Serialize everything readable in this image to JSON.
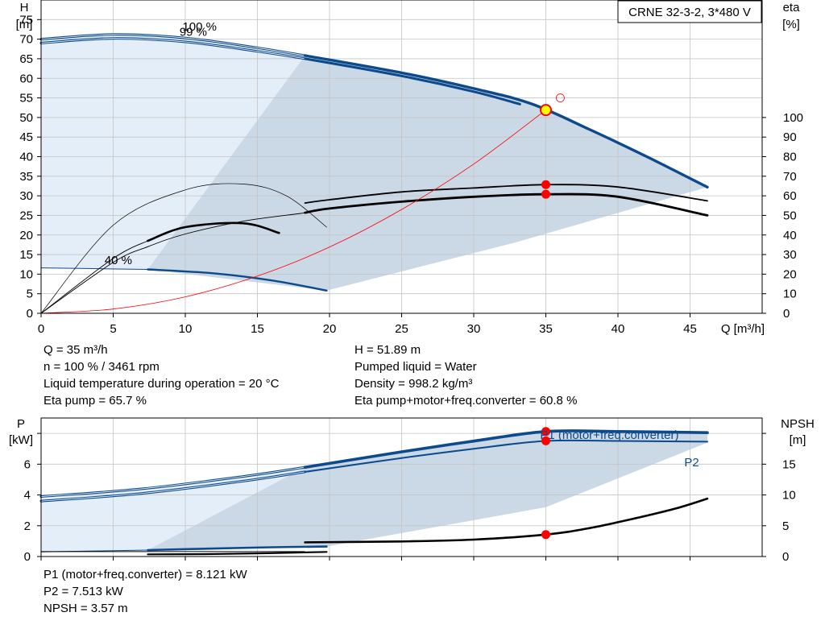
{
  "chart_data": [
    {
      "type": "line",
      "title": "CRNE 32-3-2, 3*480 V",
      "xlabel": "Q [m³/h]",
      "ylabel_left": [
        "H",
        "[m]"
      ],
      "ylabel_right": [
        "eta",
        "[%]"
      ],
      "xlim": [
        0,
        50
      ],
      "ylim": [
        0,
        80
      ],
      "eta_lim": [
        0,
        160
      ],
      "grid": true,
      "x_ticks": [
        "0",
        "5",
        "10",
        "15",
        "20",
        "25",
        "30",
        "35",
        "40",
        "45"
      ],
      "y_ticks": [
        "0",
        "5",
        "10",
        "15",
        "20",
        "25",
        "30",
        "35",
        "40",
        "45",
        "50",
        "55",
        "60",
        "65",
        "70",
        "75"
      ],
      "eta_ticks": [
        "0",
        "10",
        "20",
        "30",
        "40",
        "50",
        "60",
        "70",
        "80",
        "90",
        "100"
      ],
      "curve_labels": [
        "100 %",
        "99 %",
        "40 %"
      ],
      "series": [
        {
          "key": "H100",
          "color": "#0c4a8c",
          "x": [
            0,
            5,
            10,
            15,
            18.3,
            25,
            30,
            34,
            38,
            42,
            46.2
          ],
          "y": [
            70,
            71.2,
            70.3,
            67.8,
            65.8,
            61.4,
            57.4,
            53.5,
            47,
            40,
            32.2
          ]
        },
        {
          "key": "H99",
          "color": "#0c4a8c",
          "x": [
            0,
            5,
            10,
            15,
            18.3,
            25,
            30,
            33.2
          ],
          "y": [
            69,
            70.2,
            69.3,
            66.9,
            65,
            60.6,
            56.6,
            53.4
          ]
        },
        {
          "key": "H40",
          "color": "#0c4a8c",
          "x": [
            0,
            7.4,
            12,
            16,
            19.8
          ],
          "y": [
            11.6,
            11.2,
            10.2,
            8.4,
            5.8
          ]
        },
        {
          "key": "eta100",
          "color": "#000000",
          "x": [
            0,
            5,
            7.4,
            10,
            14,
            18,
            20,
            25,
            30,
            35,
            40,
            46.2
          ],
          "y": [
            0,
            28,
            37,
            44,
            51,
            56,
            58,
            62,
            64,
            65.7,
            64.5,
            57.4
          ]
        },
        {
          "key": "eta99",
          "color": "#000000",
          "x": [
            0,
            5,
            7.4,
            10,
            14,
            18,
            20,
            25,
            30,
            35,
            40,
            46.2
          ],
          "y": [
            0,
            26,
            34,
            40.5,
            47,
            51,
            53.5,
            57,
            59.5,
            60.8,
            59.5,
            50
          ]
        },
        {
          "key": "eta40",
          "color": "#000000",
          "x": [
            0,
            5,
            10,
            14,
            17,
            19.8
          ],
          "y": [
            0,
            45,
            63,
            66,
            60,
            44
          ]
        },
        {
          "key": "system",
          "color": "#ff0000",
          "x": [
            0,
            5,
            10,
            15,
            20,
            25,
            30,
            35
          ],
          "y": [
            0,
            1.1,
            4.2,
            9.5,
            16.9,
            26.5,
            38.1,
            51.9
          ]
        }
      ],
      "duty_point": {
        "q": 35,
        "h": 51.89,
        "eta_pump": 65.7,
        "eta_total": 60.8
      },
      "requested_point": {
        "q": 36,
        "h": 55
      }
    },
    {
      "type": "line",
      "xlim": [
        0,
        50
      ],
      "ylabel_left": [
        "P",
        "[kW]"
      ],
      "ylabel_right": [
        "NPSH",
        "[m]"
      ],
      "ylim": [
        0,
        9
      ],
      "npsh_lim": [
        0,
        22.5
      ],
      "y_ticks": [
        "0",
        "2",
        "4",
        "6"
      ],
      "npsh_ticks": [
        "0",
        "5",
        "10",
        "15"
      ],
      "series_labels": [
        "P1 (motor+freq.converter)",
        "P2"
      ],
      "series": [
        {
          "key": "P1",
          "color": "#0c4a8c",
          "x": [
            0,
            7,
            14,
            18.3,
            25,
            30,
            35,
            40,
            46.2
          ],
          "y": [
            3.9,
            4.4,
            5.2,
            5.8,
            6.8,
            7.5,
            8.12,
            8.12,
            8.05
          ]
        },
        {
          "key": "P2",
          "color": "#0c4a8c",
          "x": [
            0,
            7,
            14,
            18.3,
            25,
            30,
            35,
            40,
            46.2
          ],
          "y": [
            3.6,
            4.1,
            4.9,
            5.5,
            6.4,
            7,
            7.51,
            7.51,
            7.46
          ]
        },
        {
          "key": "P40",
          "color": "#0c4a8c",
          "x": [
            0,
            7.4,
            12,
            16,
            19.8
          ],
          "y": [
            0.3,
            0.42,
            0.52,
            0.6,
            0.65
          ]
        },
        {
          "key": "NPSH",
          "color": "#000000",
          "x": [
            18.3,
            25,
            30,
            35,
            38,
            41,
            44,
            46.2
          ],
          "y": [
            2.3,
            2.45,
            2.75,
            3.57,
            4.6,
            6.1,
            7.8,
            9.4
          ]
        },
        {
          "key": "NPSH40",
          "color": "#000000",
          "x": [
            7.4,
            12,
            16,
            19.8
          ],
          "y": [
            0.35,
            0.4,
            0.55,
            0.75
          ]
        }
      ],
      "duty_point": {
        "q": 35,
        "p1": 8.121,
        "p2": 7.513,
        "npsh": 3.57
      }
    }
  ],
  "info_top_left": [
    "Q = 35 m³/h",
    "n = 100 % / 3461 rpm",
    "Liquid temperature during operation = 20 °C",
    "Eta pump = 65.7 %"
  ],
  "info_top_right": [
    "H = 51.89 m",
    "Pumped liquid = Water",
    "Density = 998.2 kg/m³",
    "Eta pump+motor+freq.converter = 60.8 %"
  ],
  "info_bottom": [
    "P1 (motor+freq.converter) = 8.121 kW",
    "P2 = 7.513 kW",
    "NPSH = 3.57 m"
  ],
  "colors": {
    "pump_curve": "#0c4a8c",
    "area_light": "#e4eef9",
    "area_dark": "#cbd8e6",
    "duty_point": "#ff0000",
    "system_curve": "#ff0000",
    "grid": "#c4c4c4"
  }
}
